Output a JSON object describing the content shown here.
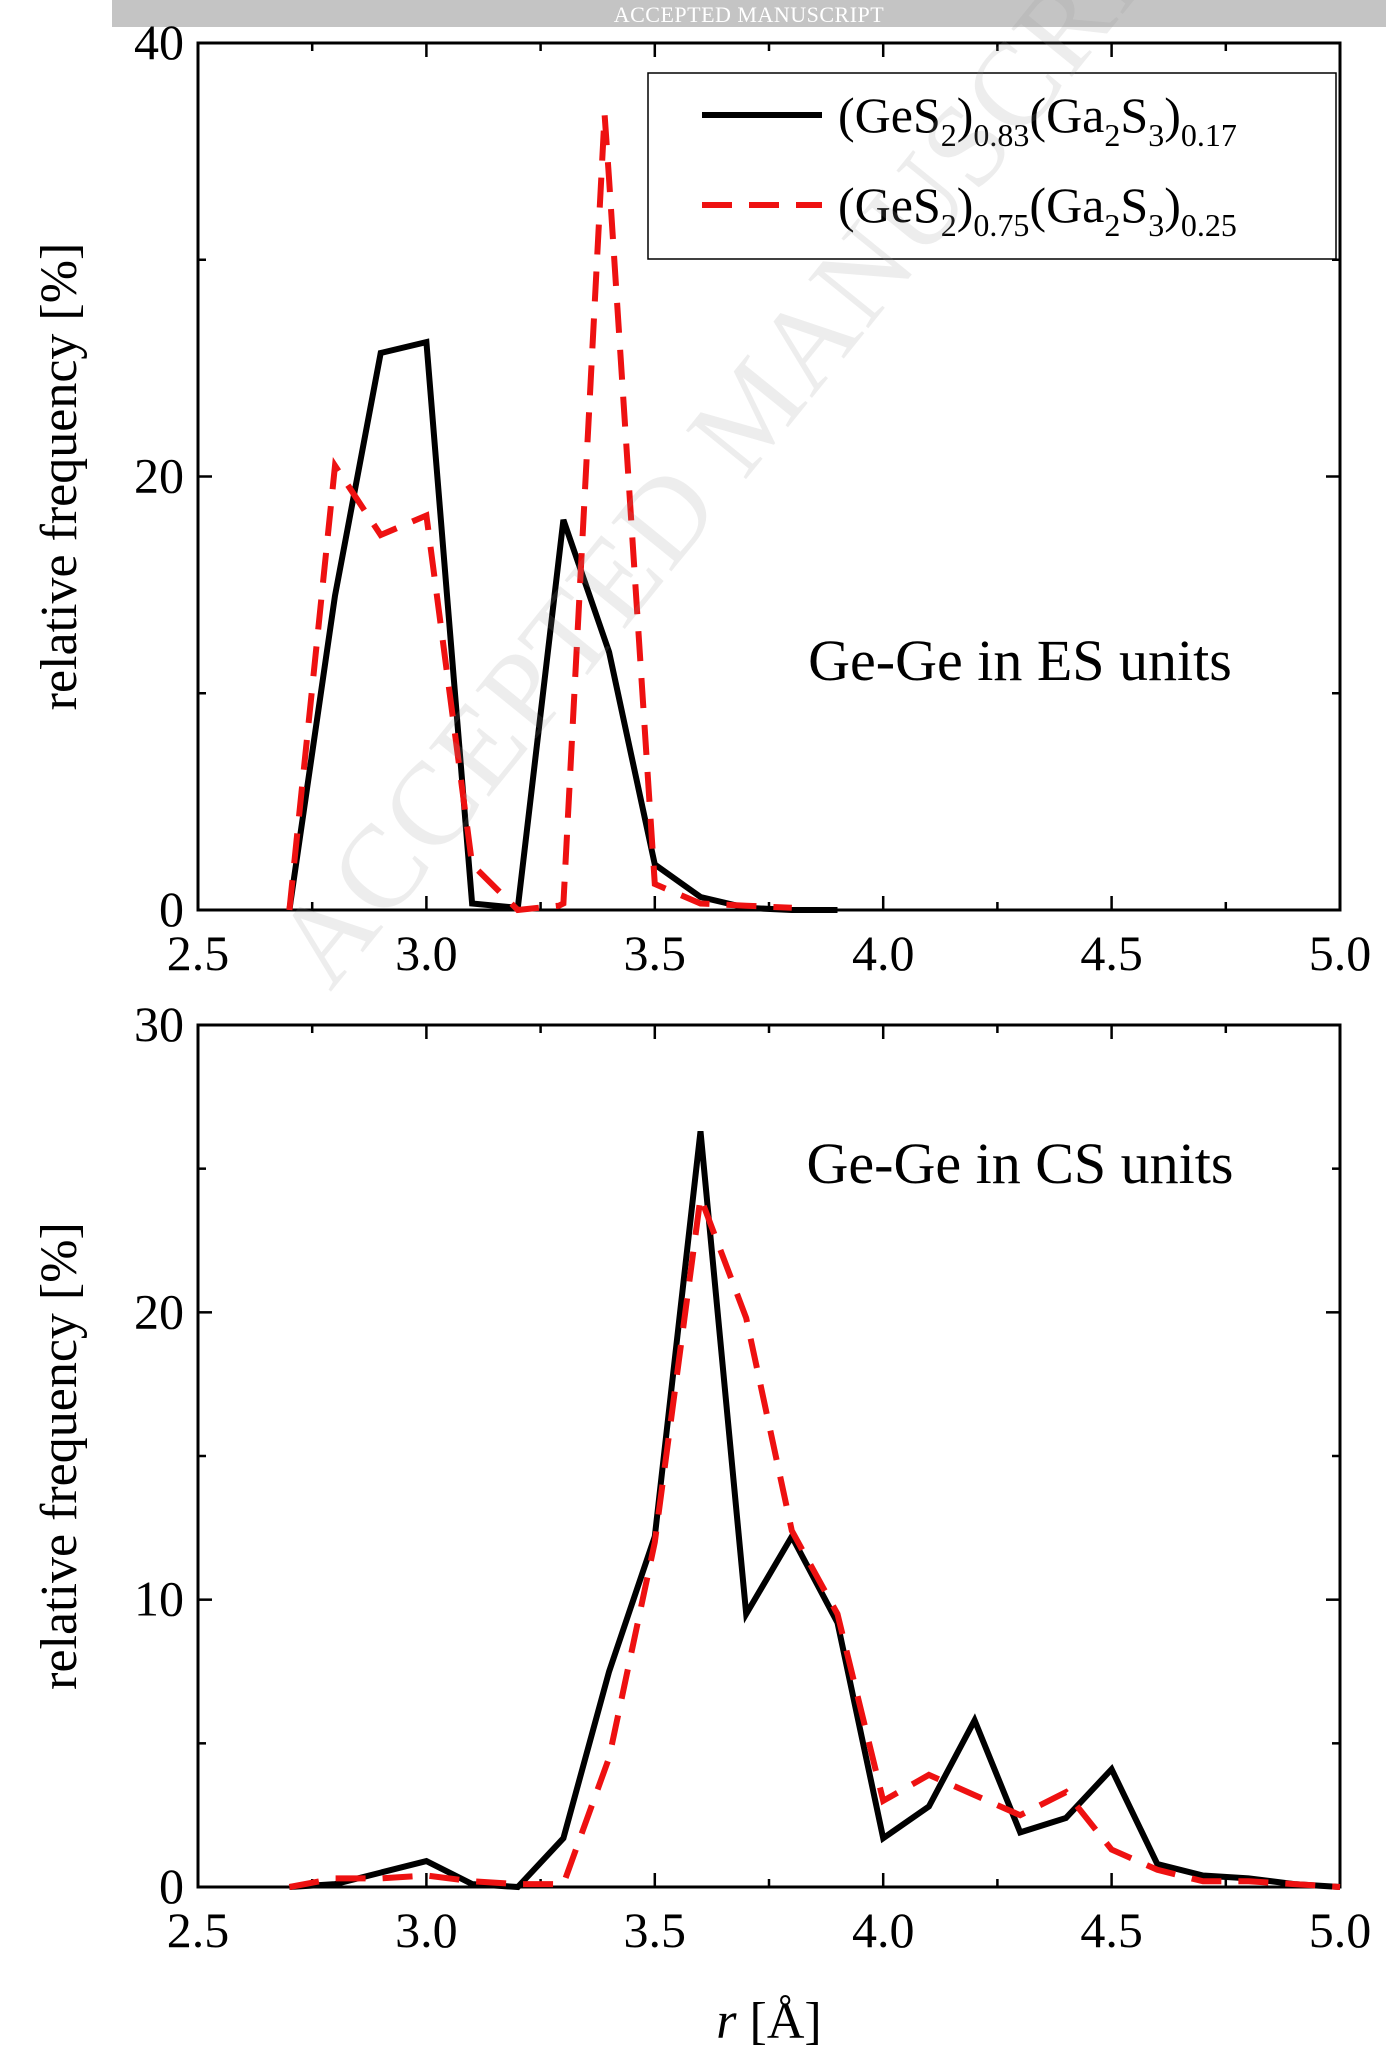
{
  "banner": "ACCEPTED MANUSCRIPT",
  "watermark": "ACCEPTED MANUSCRIPT",
  "legend": {
    "series1": {
      "base1": "(GeS",
      "sub1": "2",
      "base2": ")",
      "sub2": "0.83",
      "base3": "(Ga",
      "sub3": "2",
      "base4": "S",
      "sub4": "3",
      "base5": ")",
      "sub5": "0.17"
    },
    "series2": {
      "base1": "(GeS",
      "sub1": "2",
      "base2": ")",
      "sub2": "0.75",
      "base3": "(Ga",
      "sub3": "2",
      "base4": "S",
      "sub4": "3",
      "base5": ")",
      "sub5": "0.25"
    }
  },
  "colors": {
    "series1": "#000000",
    "series2": "#ee1111"
  },
  "chart_data": [
    {
      "type": "line",
      "annotation": "Ge-Ge in ES units",
      "ylabel": "relative frequency [%]",
      "xlabel": "",
      "xlim": [
        2.5,
        5.0
      ],
      "ylim": [
        0,
        40
      ],
      "xticks": [
        "2.5",
        "3.0",
        "3.5",
        "4.0",
        "4.5",
        "5.0"
      ],
      "yticks": [
        "0",
        "20",
        "40"
      ],
      "series": [
        {
          "x": [
            2.7,
            2.8,
            2.9,
            3.0,
            3.1,
            3.2,
            3.3,
            3.4,
            3.5,
            3.6,
            3.7,
            3.8,
            3.9
          ],
          "y": [
            0,
            14.5,
            25.7,
            26.2,
            0.3,
            0.1,
            18.0,
            11.9,
            2.1,
            0.6,
            0.1,
            0.0,
            0.0
          ]
        },
        {
          "x": [
            2.7,
            2.8,
            2.9,
            3.0,
            3.1,
            3.2,
            3.29,
            3.3,
            3.39,
            3.4,
            3.5,
            3.6,
            3.7,
            3.8
          ],
          "y": [
            0,
            20.5,
            17.3,
            18.2,
            2.1,
            0.0,
            0.2,
            0.3,
            36.7,
            33.7,
            1.2,
            0.3,
            0.2,
            0.1
          ]
        }
      ]
    },
    {
      "type": "line",
      "annotation": "Ge-Ge in CS units",
      "ylabel": "relative frequency [%]",
      "xlabel": "r [Å]",
      "xlim": [
        2.5,
        5.0
      ],
      "ylim": [
        0,
        30
      ],
      "xticks": [
        "2.5",
        "3.0",
        "3.5",
        "4.0",
        "4.5",
        "5.0"
      ],
      "yticks": [
        "0",
        "10",
        "20",
        "30"
      ],
      "series": [
        {
          "x": [
            2.7,
            2.8,
            2.9,
            3.0,
            3.1,
            3.2,
            3.3,
            3.4,
            3.5,
            3.6,
            3.7,
            3.8,
            3.9,
            4.0,
            4.1,
            4.2,
            4.3,
            4.4,
            4.5,
            4.6,
            4.7,
            4.8,
            4.9,
            5.0
          ],
          "y": [
            0,
            0.1,
            0.5,
            0.9,
            0.1,
            0.0,
            1.7,
            7.5,
            12.2,
            26.3,
            9.5,
            12.2,
            9.2,
            1.7,
            2.8,
            5.8,
            1.9,
            2.4,
            4.1,
            0.8,
            0.4,
            0.3,
            0.1,
            0.0
          ]
        },
        {
          "x": [
            2.7,
            2.8,
            2.9,
            3.0,
            3.1,
            3.2,
            3.3,
            3.4,
            3.5,
            3.6,
            3.7,
            3.8,
            3.9,
            4.0,
            4.1,
            4.2,
            4.3,
            4.4,
            4.5,
            4.6,
            4.7,
            4.8,
            4.9,
            5.0
          ],
          "y": [
            0,
            0.3,
            0.3,
            0.4,
            0.2,
            0.1,
            0.1,
            4.5,
            12.0,
            24.0,
            19.8,
            12.4,
            9.5,
            3.0,
            3.9,
            3.2,
            2.5,
            3.3,
            1.3,
            0.6,
            0.2,
            0.2,
            0.1,
            0.0
          ]
        }
      ]
    }
  ]
}
